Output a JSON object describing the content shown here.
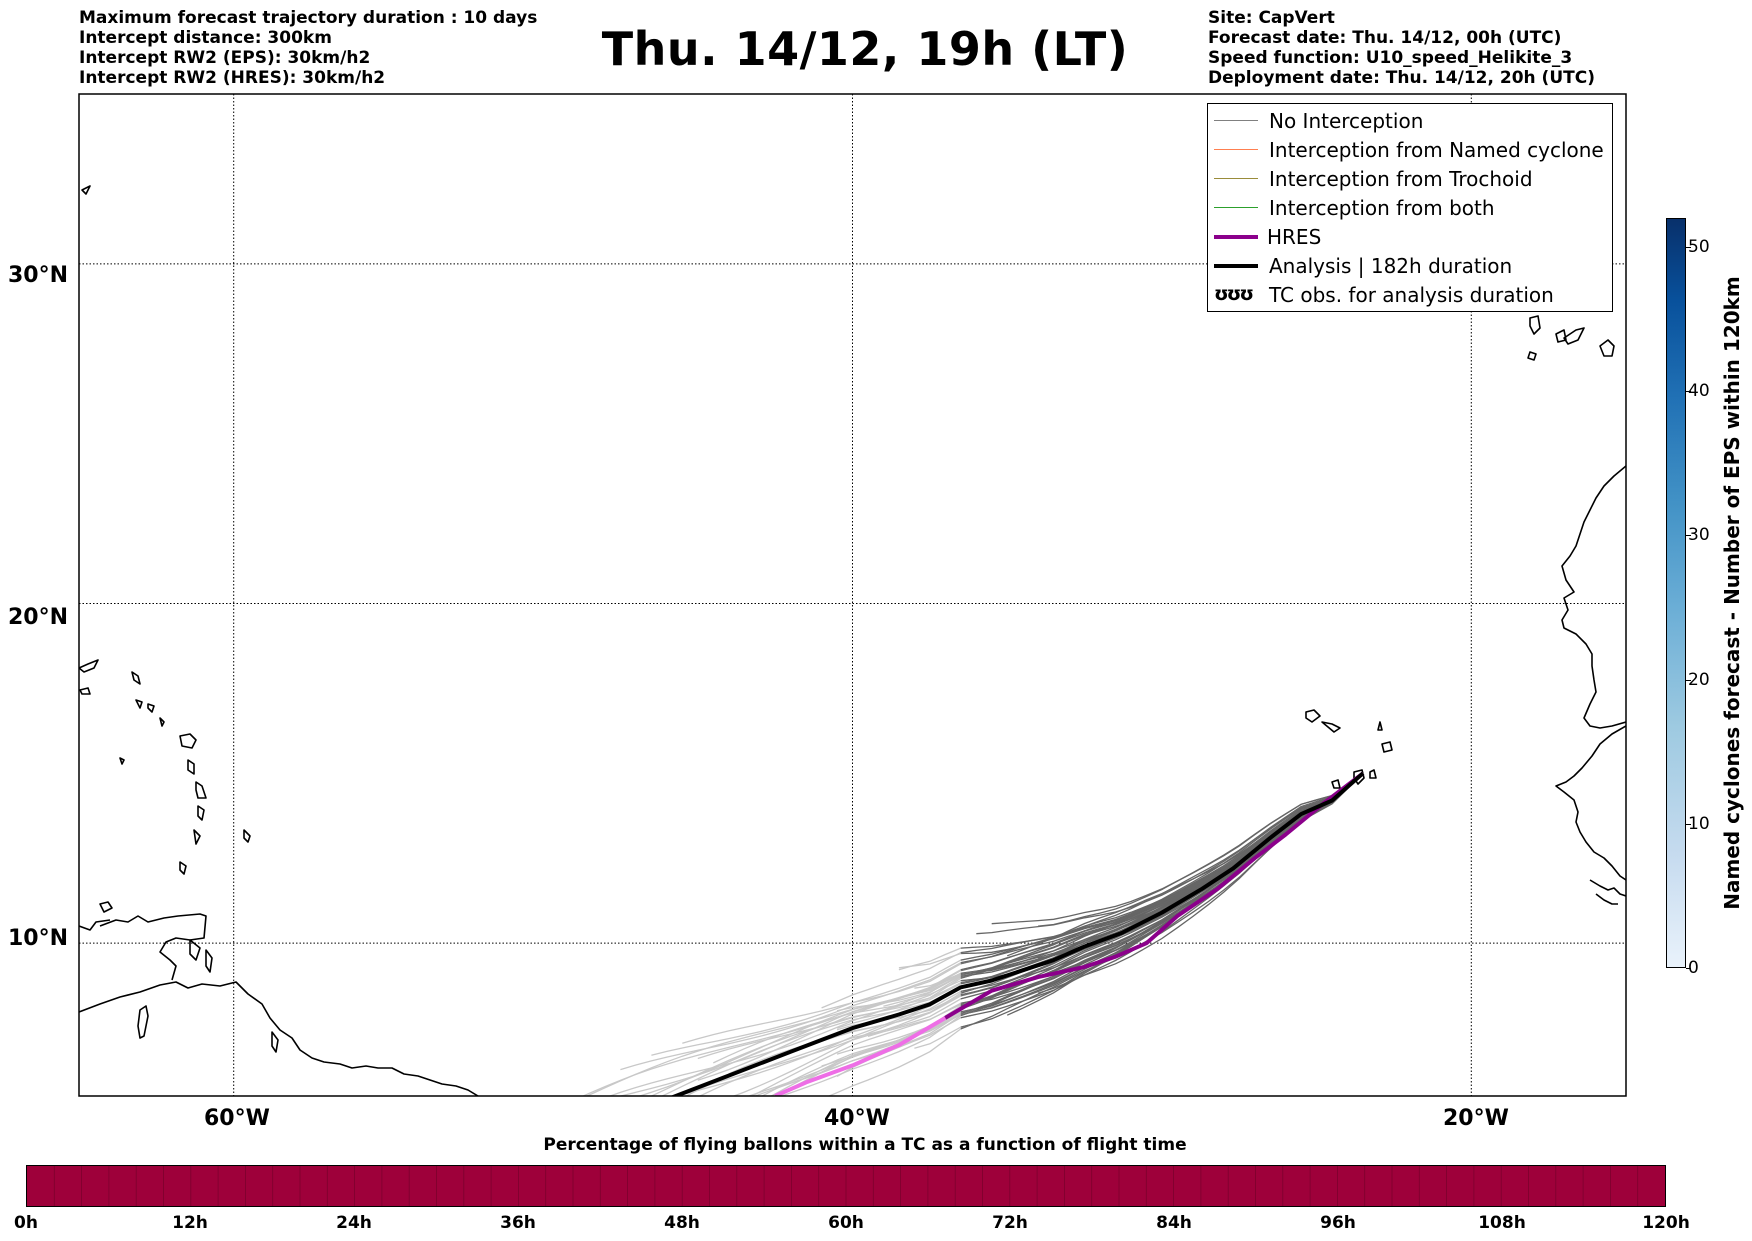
{
  "header_left": [
    "Maximum forecast trajectory duration : 10 days",
    "Intercept distance: 300km",
    "Intercept RW2 (EPS):  30km/h2",
    "Intercept RW2 (HRES): 30km/h2"
  ],
  "header_right": [
    "Site: CapVert",
    "Forecast date: Thu. 14/12, 00h (UTC)",
    "Speed function: U10_speed_Helikite_3",
    "Deployment date: Thu. 14/12, 20h (UTC)"
  ],
  "title": "Thu. 14/12, 19h (LT)",
  "map": {
    "lon_range": [
      -65,
      -15
    ],
    "lat_range": [
      5.5,
      35
    ],
    "lat_labels": [
      "30°N",
      "20°N",
      "10°N"
    ],
    "lat_values": [
      30,
      20,
      10
    ],
    "lon_labels": [
      "60°W",
      "40°W",
      "20°W"
    ],
    "lon_values": [
      -60,
      -40,
      -20
    ],
    "grid": true
  },
  "legend": {
    "items": [
      {
        "label": "No Interception",
        "color": "#808080",
        "style": "thin"
      },
      {
        "label": "Interception from Named cyclone",
        "color": "#ff7f50",
        "style": "thin"
      },
      {
        "label": "Interception from Trochoid",
        "color": "#9a8c3a",
        "style": "thin"
      },
      {
        "label": "Interception from both",
        "color": "#2ca02c",
        "style": "thin"
      },
      {
        "label": "HRES",
        "color": "#8b008b",
        "style": "thick"
      },
      {
        "label": "Analysis | 182h duration",
        "color": "#000000",
        "style": "thick"
      },
      {
        "label": "TC obs. for analysis duration",
        "glyph": "ʊʊʊ"
      }
    ]
  },
  "right_colorbar": {
    "label": "Named cyclones forecast - Number of EPS within 120km",
    "ticks": [
      "0",
      "10",
      "20",
      "30",
      "40",
      "50"
    ],
    "max": 52
  },
  "bottom_colorbar": {
    "title": "Percentage of flying ballons within a TC as a function of flight time",
    "ticks": [
      "0h",
      "12h",
      "24h",
      "36h",
      "48h",
      "60h",
      "72h",
      "84h",
      "96h",
      "108h",
      "120h"
    ],
    "fill_color": "#9e003a"
  },
  "chart_data": {
    "type": "map-trajectories",
    "deployment_site": {
      "lon": -23.5,
      "lat": 15.0
    },
    "analysis_track": [
      [
        -23.5,
        15.0
      ],
      [
        -24.5,
        14.2
      ],
      [
        -25.5,
        13.8
      ],
      [
        -26.5,
        13.1
      ],
      [
        -27.7,
        12.2
      ],
      [
        -28.7,
        11.6
      ],
      [
        -30.0,
        10.9
      ],
      [
        -31.3,
        10.3
      ],
      [
        -32.5,
        9.9
      ],
      [
        -33.5,
        9.5
      ],
      [
        -34.5,
        9.2
      ],
      [
        -35.5,
        8.9
      ],
      [
        -36.5,
        8.7
      ],
      [
        -37.5,
        8.2
      ],
      [
        -38.5,
        7.9
      ],
      [
        -40.0,
        7.5
      ],
      [
        -42.0,
        6.8
      ],
      [
        -44.0,
        6.1
      ],
      [
        -46.0,
        5.4
      ]
    ],
    "hres_track": [
      [
        -23.5,
        15.0
      ],
      [
        -24.8,
        14.1
      ],
      [
        -26.0,
        13.2
      ],
      [
        -27.0,
        12.5
      ],
      [
        -28.2,
        11.6
      ],
      [
        -29.5,
        10.8
      ],
      [
        -30.5,
        10.0
      ],
      [
        -31.5,
        9.6
      ],
      [
        -32.5,
        9.3
      ],
      [
        -34.0,
        9.0
      ],
      [
        -35.5,
        8.6
      ],
      [
        -37.0,
        7.8
      ],
      [
        -38.5,
        7.0
      ],
      [
        -40.0,
        6.4
      ],
      [
        -41.5,
        5.9
      ],
      [
        -42.5,
        5.5
      ]
    ]
  }
}
